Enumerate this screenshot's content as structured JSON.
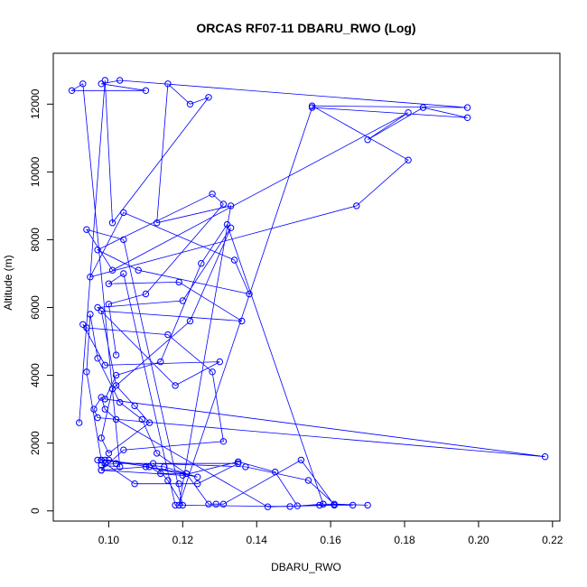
{
  "chart_data": {
    "type": "line",
    "title": "ORCAS RF07-11 DBARU_RWO (Log)",
    "xlabel": "DBARU_RWO",
    "ylabel": "Altitude (m)",
    "xlim": [
      0.085,
      0.222
    ],
    "ylim": [
      -300,
      13500
    ],
    "x_ticks": [
      0.1,
      0.12,
      0.14,
      0.16,
      0.18,
      0.2,
      0.22
    ],
    "x_tick_labels": [
      "0.10",
      "0.12",
      "0.14",
      "0.16",
      "0.18",
      "0.20",
      "0.22"
    ],
    "y_ticks": [
      0,
      2000,
      4000,
      6000,
      8000,
      10000,
      12000
    ],
    "y_tick_labels": [
      "0",
      "2000",
      "4000",
      "6000",
      "8000",
      "10000",
      "12000"
    ],
    "grid": false,
    "legend": "none",
    "series_color": "#0000ff",
    "series": [
      {
        "x": [
          0.092,
          0.099,
          0.101,
          0.127,
          0.122,
          0.116,
          0.113,
          0.133,
          0.119,
          0.155,
          0.197,
          0.185,
          0.17,
          0.181,
          0.101,
          0.094,
          0.104,
          0.12,
          0.116,
          0.112,
          0.137,
          0.154,
          0.161,
          0.17,
          0.158,
          0.166,
          0.157,
          0.151,
          0.145,
          0.135,
          0.12,
          0.098,
          0.11,
          0.124,
          0.115,
          0.098,
          0.097,
          0.099,
          0.1,
          0.121,
          0.114,
          0.111,
          0.098,
          0.094,
          0.095,
          0.097,
          0.103,
          0.109,
          0.113,
          0.121,
          0.127,
          0.129,
          0.131,
          0.152,
          0.161,
          0.143,
          0.102,
          0.099,
          0.098,
          0.096,
          0.097,
          0.218,
          0.099,
          0.102,
          0.114,
          0.125,
          0.132,
          0.158,
          0.149,
          0.118,
          0.104,
          0.1,
          0.119,
          0.136,
          0.098,
          0.102,
          0.107,
          0.111,
          0.1,
          0.098,
          0.101,
          0.122,
          0.133,
          0.12,
          0.097,
          0.118,
          0.13,
          0.099,
          0.093,
          0.094,
          0.116,
          0.128,
          0.131,
          0.104,
          0.098,
          0.099,
          0.107,
          0.119,
          0.124,
          0.135,
          0.102,
          0.098,
          0.103,
          0.093,
          0.09,
          0.11,
          0.098,
          0.103,
          0.197,
          0.155,
          0.181,
          0.167,
          0.095,
          0.104,
          0.134,
          0.138,
          0.108,
          0.097,
          0.128,
          0.131,
          0.11,
          0.1,
          0.102
        ],
        "y": [
          2600,
          12700,
          8500,
          12200,
          12000,
          12600,
          8500,
          9000,
          170,
          11900,
          11600,
          11900,
          10950,
          11750,
          7100,
          8300,
          8000,
          170,
          900,
          1400,
          1300,
          900,
          200,
          170,
          200,
          170,
          170,
          150,
          1150,
          1450,
          1050,
          1200,
          1300,
          1000,
          1300,
          1500,
          1500,
          1500,
          1500,
          1100,
          1100,
          1300,
          1500,
          4100,
          5800,
          4500,
          3200,
          2700,
          1700,
          1100,
          200,
          200,
          200,
          1500,
          170,
          120,
          2700,
          3000,
          3350,
          3000,
          2750,
          1600,
          3300,
          4000,
          4400,
          7300,
          8450,
          200,
          130,
          170,
          7000,
          6700,
          6750,
          5600,
          5900,
          3700,
          3100,
          2600,
          1700,
          2150,
          3600,
          5600,
          8350,
          6200,
          6000,
          3700,
          4400,
          4300,
          5500,
          5400,
          5200,
          4100,
          2050,
          1800,
          1200,
          1400,
          800,
          800,
          800,
          1400,
          1400,
          1350,
          1300,
          12600,
          12400,
          12400,
          12600,
          12700,
          11900,
          11950,
          10350,
          9000,
          6900,
          8800,
          7400,
          6400,
          7100,
          7700,
          9350,
          9050,
          6400,
          6100,
          4600
        ]
      }
    ]
  }
}
